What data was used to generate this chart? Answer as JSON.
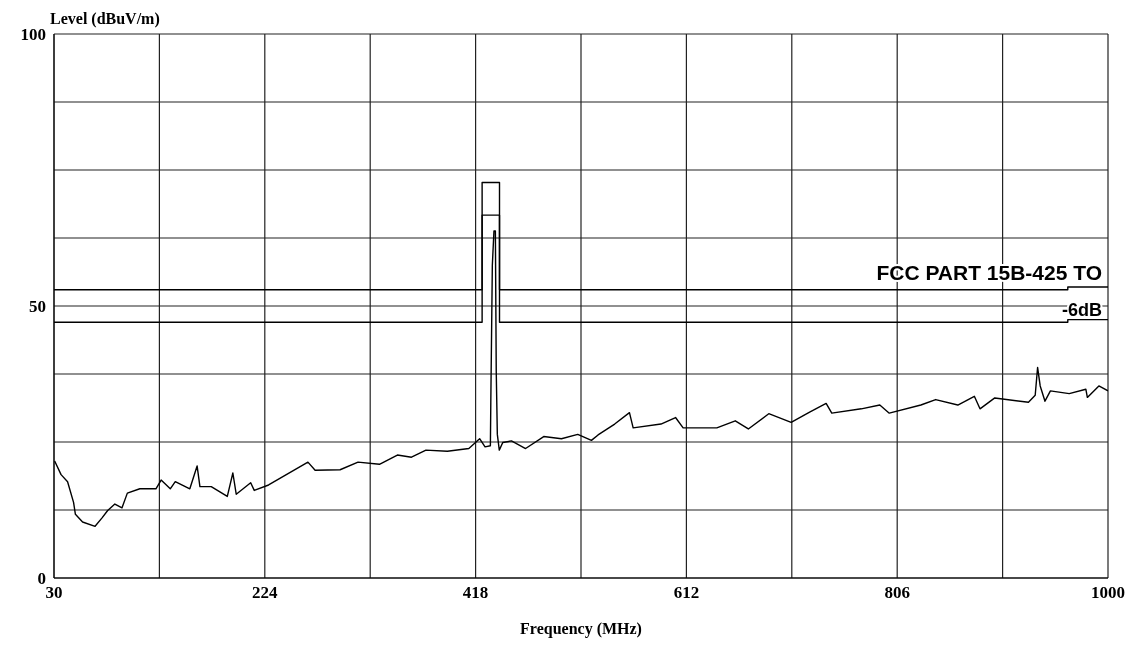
{
  "chart_data": {
    "type": "line",
    "xlabel": "Frequency (MHz)",
    "ylabel": "Level (dBuV/m)",
    "xlim": [
      30,
      1000
    ],
    "ylim": [
      0,
      100
    ],
    "xticks": [
      30,
      {
        "value": 127,
        "label": null
      },
      224,
      {
        "value": 321,
        "label": null
      },
      418,
      {
        "value": 515,
        "label": null
      },
      612,
      {
        "value": 709,
        "label": null
      },
      806,
      {
        "value": 903,
        "label": null
      },
      1000
    ],
    "yticks": [
      0,
      {
        "value": 12.5,
        "label": null
      },
      {
        "value": 25,
        "label": null
      },
      {
        "value": 37.5,
        "label": null
      },
      50,
      {
        "value": 62.5,
        "label": null
      },
      {
        "value": 75,
        "label": null
      },
      {
        "value": 87.5,
        "label": null
      },
      100
    ],
    "grid": true,
    "marker": "none",
    "line_style": "solid",
    "series": [
      {
        "name": "FCC PART 15B-425 TO",
        "color": "#000000",
        "x": [
          30,
          424,
          424,
          440,
          440,
          963,
          963,
          1000
        ],
        "values": [
          53,
          53,
          72.7,
          72.7,
          53,
          53,
          53.5,
          53.5
        ]
      },
      {
        "name": "-6dB",
        "color": "#000000",
        "x": [
          30,
          424,
          424,
          440,
          440,
          963,
          963,
          1000
        ],
        "values": [
          47,
          47,
          66.7,
          66.7,
          47,
          47,
          47.5,
          47.5
        ]
      },
      {
        "color": "#000000",
        "x": [
          30.6,
          36.5,
          42.5,
          48,
          49.7,
          56.3,
          67.8,
          74.4,
          79.4,
          86,
          92.6,
          97.5,
          109,
          123.8,
          128.6,
          137,
          141.6,
          155,
          161.7,
          164.3,
          174.7,
          189.5,
          194.6,
          197.7,
          211,
          214.3,
          227.5,
          243.8,
          263.7,
          270.3,
          293.3,
          309.8,
          329.5,
          346,
          359,
          372.3,
          392,
          411.8,
          421.7,
          426.7,
          431.6,
          432,
          433.4,
          434.9,
          436.2,
          437,
          438,
          439.8,
          443,
          451,
          464,
          480.7,
          497,
          512,
          524.6,
          530.7,
          546,
          559.6,
          563,
          588.6,
          602,
          609,
          640,
          657,
          669,
          687.8,
          708.4,
          725.4,
          740.6,
          745.8,
          773,
          790,
          798.7,
          827.8,
          841.4,
          861.8,
          877,
          882.2,
          895.8,
          926.8,
          933,
          935.2,
          937.6,
          942,
          947,
          964.3,
          979.6,
          981,
          991.6,
          1000
        ],
        "values": [
          21.5,
          19,
          17.7,
          13.9,
          11.7,
          10.3,
          9.5,
          11.1,
          12.4,
          13.6,
          12.9,
          15.6,
          16.4,
          16.4,
          18,
          16.4,
          17.7,
          16.4,
          20.6,
          16.8,
          16.8,
          15,
          19.3,
          15.4,
          17.5,
          16.1,
          17.1,
          19,
          21.3,
          19.8,
          19.9,
          21.3,
          20.9,
          22.6,
          22.2,
          23.5,
          23.3,
          23.8,
          25.6,
          24.1,
          24.3,
          32.3,
          57.5,
          63.8,
          63.8,
          38,
          26.4,
          23.5,
          24.9,
          25.2,
          23.8,
          26,
          25.6,
          26.4,
          25.3,
          26.3,
          28.3,
          30.4,
          27.6,
          28.3,
          29.5,
          27.6,
          27.6,
          28.9,
          27.4,
          30.2,
          28.6,
          30.5,
          32.1,
          30.3,
          31.1,
          31.8,
          30.3,
          31.8,
          32.8,
          31.8,
          33.4,
          31.1,
          33.1,
          32.3,
          33.6,
          38.7,
          35.3,
          32.5,
          34.4,
          33.9,
          34.7,
          33.2,
          35.3,
          34.4
        ]
      }
    ]
  }
}
